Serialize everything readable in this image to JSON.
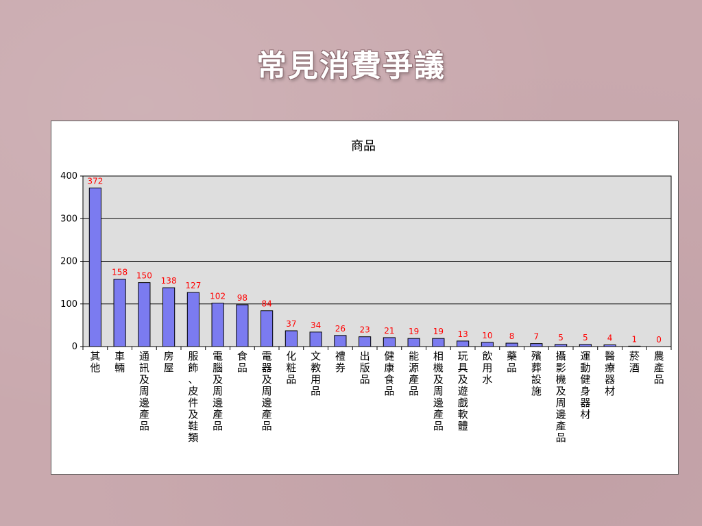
{
  "slide": {
    "title": "常見消費爭議"
  },
  "chart_data": {
    "type": "bar",
    "title": "商品",
    "xlabel": "",
    "ylabel": "",
    "ylim": [
      0,
      400
    ],
    "yticks": [
      0,
      100,
      200,
      300,
      400
    ],
    "grid": true,
    "colors": {
      "bar": "#7b7bf0",
      "plot_bg": "#dedede",
      "label": "#ff0000"
    },
    "categories": [
      "其他",
      "車輛",
      "通訊及周邊產品",
      "房屋",
      "服飾、皮件及鞋類",
      "電腦及周邊產品",
      "食品",
      "電器及周邊產品",
      "化粧品",
      "文教用品",
      "禮券",
      "出版品",
      "健康食品",
      "能源產品",
      "相機及周邊產品",
      "玩具及遊戲軟體",
      "飲用水",
      "藥品",
      "殯葬設施",
      "攝影機及周邊產品",
      "運動健身器材",
      "醫療器材",
      "菸酒",
      "農產品"
    ],
    "values": [
      372,
      158,
      150,
      138,
      127,
      102,
      98,
      84,
      37,
      34,
      26,
      23,
      21,
      19,
      19,
      13,
      10,
      8,
      7,
      5,
      5,
      4,
      1,
      0
    ]
  }
}
